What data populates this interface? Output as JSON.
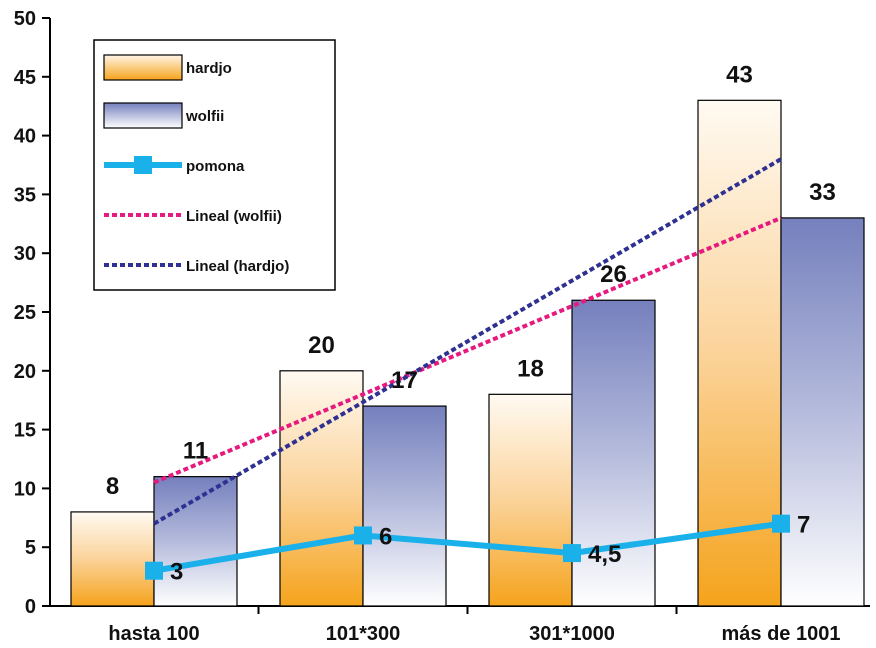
{
  "chart_data": {
    "type": "bar",
    "categories": [
      "hasta 100",
      "101*300",
      "301*1000",
      "más de 1001"
    ],
    "ylim": [
      0,
      50
    ],
    "yticks": [
      0,
      5,
      10,
      15,
      20,
      25,
      30,
      35,
      40,
      45,
      50
    ],
    "grid": false,
    "legend_position": "top-left",
    "series": [
      {
        "name": "hardjo",
        "kind": "bar",
        "values": [
          8,
          20,
          18,
          43
        ],
        "color": "#f5a623",
        "data_labels": [
          "8",
          "20",
          "18",
          "43"
        ]
      },
      {
        "name": "wolfii",
        "kind": "bar",
        "values": [
          11,
          17,
          26,
          33
        ],
        "color": "#7f8bc4",
        "data_labels": [
          "11",
          "17",
          "26",
          "33"
        ]
      },
      {
        "name": "pomona",
        "kind": "line",
        "values": [
          3,
          6,
          4.5,
          7
        ],
        "color": "#1ab0ea",
        "data_labels": [
          "3",
          "6",
          "4,5",
          "7"
        ]
      },
      {
        "name": "Lineal (wolfii)",
        "kind": "trendline",
        "values": [
          10.5,
          18,
          25.5,
          33
        ],
        "color": "#e6197e"
      },
      {
        "name": "Lineal (hardjo)",
        "kind": "trendline",
        "values": [
          7,
          17.5,
          28,
          38
        ],
        "color": "#2e3192"
      }
    ]
  }
}
